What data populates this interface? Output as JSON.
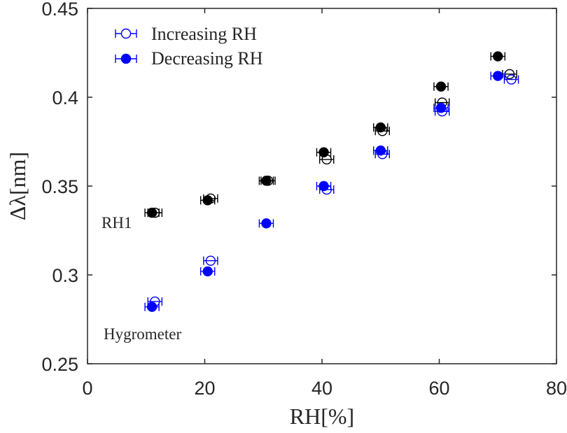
{
  "chart_data": {
    "type": "scatter",
    "xlabel": "RH[%]",
    "ylabel": "Δλ[nm]",
    "xlim": [
      0,
      80
    ],
    "ylim": [
      0.25,
      0.45
    ],
    "x_ticks": [
      0,
      20,
      40,
      60,
      80
    ],
    "y_ticks": [
      0.25,
      0.3,
      0.35,
      0.4,
      0.45
    ],
    "x_tick_labels": [
      "0",
      "20",
      "40",
      "60",
      "80"
    ],
    "y_tick_labels": [
      "0.25",
      "0.3",
      "0.35",
      "0.4",
      "0.45"
    ],
    "grid": false,
    "legend_position": "top-left",
    "legend": [
      {
        "label": "Increasing RH",
        "marker": "open-circle",
        "color": "#0000ff"
      },
      {
        "label": "Decreasing RH",
        "marker": "filled-circle",
        "color": "#0000ff"
      }
    ],
    "annotations": [
      {
        "text": "RH1",
        "near": "black series"
      },
      {
        "text": "Hygrometer",
        "near": "blue series"
      }
    ],
    "groups": [
      {
        "label": "RH1",
        "color": "#000000",
        "increasing": {
          "x": [
            11.5,
            21.0,
            30.8,
            40.8,
            50.3,
            60.5,
            72.0
          ],
          "y": [
            0.335,
            0.343,
            0.353,
            0.365,
            0.381,
            0.397,
            0.413
          ],
          "x_err": [
            1.2,
            1.2,
            1.2,
            1.2,
            1.2,
            1.2,
            1.2
          ]
        },
        "decreasing": {
          "x": [
            11.0,
            20.5,
            30.5,
            40.3,
            50.0,
            60.3,
            70.0
          ],
          "y": [
            0.335,
            0.342,
            0.353,
            0.369,
            0.383,
            0.406,
            0.423
          ],
          "x_err": [
            1.2,
            1.2,
            1.2,
            1.2,
            1.2,
            1.2,
            1.2
          ]
        }
      },
      {
        "label": "Hygrometer",
        "color": "#0000ff",
        "increasing": {
          "x": [
            11.5,
            21.0,
            40.8,
            50.3,
            60.5,
            72.3
          ],
          "y": [
            0.285,
            0.308,
            0.348,
            0.368,
            0.392,
            0.41
          ],
          "x_err": [
            1.2,
            1.2,
            1.2,
            1.2,
            1.2,
            1.2
          ]
        },
        "decreasing": {
          "x": [
            11.0,
            20.5,
            30.5,
            40.3,
            50.0,
            60.3,
            70.0
          ],
          "y": [
            0.282,
            0.302,
            0.329,
            0.35,
            0.37,
            0.394,
            0.412
          ],
          "x_err": [
            1.2,
            1.2,
            1.2,
            1.2,
            1.2,
            1.2,
            1.2
          ]
        }
      }
    ]
  }
}
